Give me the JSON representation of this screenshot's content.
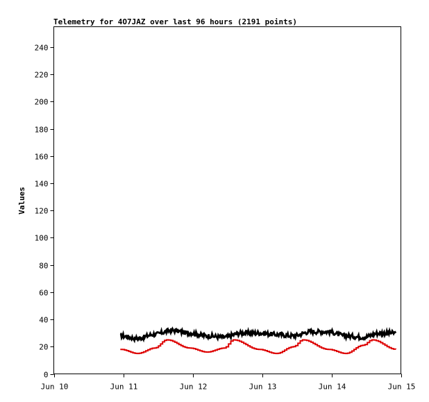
{
  "chart_data": {
    "type": "line",
    "title": "Telemetry for 4O7JAZ over last 96 hours (2191 points)",
    "xlabel": "",
    "ylabel": "Values",
    "x_ticks": [
      "Jun 10",
      "Jun 11",
      "Jun 12",
      "Jun 13",
      "Jun 14",
      "Jun 15"
    ],
    "x_range": [
      "Jun 10 00:00",
      "Jun 15 00:00"
    ],
    "y_ticks": [
      0,
      20,
      40,
      60,
      80,
      100,
      120,
      140,
      160,
      180,
      200,
      220,
      240
    ],
    "ylim": [
      0,
      255
    ],
    "grid": false,
    "legend": "none",
    "series": [
      {
        "color": "#000000",
        "values": [
          {
            "x": "Jun 10 23:00",
            "y": 28
          },
          {
            "x": "Jun 11 04:48",
            "y": 26
          },
          {
            "x": "Jun 11 10:48",
            "y": 29
          },
          {
            "x": "Jun 11 16:48",
            "y": 32
          },
          {
            "x": "Jun 11 22:48",
            "y": 30
          },
          {
            "x": "Jun 12 04:48",
            "y": 28
          },
          {
            "x": "Jun 12 10:48",
            "y": 27
          },
          {
            "x": "Jun 12 16:48",
            "y": 30
          },
          {
            "x": "Jun 12 22:48",
            "y": 30
          },
          {
            "x": "Jun 13 04:48",
            "y": 29
          },
          {
            "x": "Jun 13 10:48",
            "y": 28
          },
          {
            "x": "Jun 13 16:48",
            "y": 31
          },
          {
            "x": "Jun 13 22:48",
            "y": 31
          },
          {
            "x": "Jun 14 04:48",
            "y": 28
          },
          {
            "x": "Jun 14 10:48",
            "y": 27
          },
          {
            "x": "Jun 14 16:48",
            "y": 30
          },
          {
            "x": "Jun 14 22:12",
            "y": 30
          }
        ]
      },
      {
        "color": "#dd0000",
        "values": [
          {
            "x": "Jun 10 23:00",
            "y": 18
          },
          {
            "x": "Jun 11 04:48",
            "y": 15
          },
          {
            "x": "Jun 11 10:48",
            "y": 19
          },
          {
            "x": "Jun 11 15:00",
            "y": 25
          },
          {
            "x": "Jun 11 22:48",
            "y": 19
          },
          {
            "x": "Jun 12 04:48",
            "y": 16
          },
          {
            "x": "Jun 12 10:48",
            "y": 19
          },
          {
            "x": "Jun 12 14:00",
            "y": 25
          },
          {
            "x": "Jun 12 22:48",
            "y": 18
          },
          {
            "x": "Jun 13 04:48",
            "y": 15
          },
          {
            "x": "Jun 13 10:48",
            "y": 20
          },
          {
            "x": "Jun 13 14:00",
            "y": 25
          },
          {
            "x": "Jun 13 22:48",
            "y": 18
          },
          {
            "x": "Jun 14 04:48",
            "y": 15
          },
          {
            "x": "Jun 14 10:48",
            "y": 21
          },
          {
            "x": "Jun 14 14:00",
            "y": 25
          },
          {
            "x": "Jun 14 22:12",
            "y": 18
          }
        ]
      }
    ]
  }
}
